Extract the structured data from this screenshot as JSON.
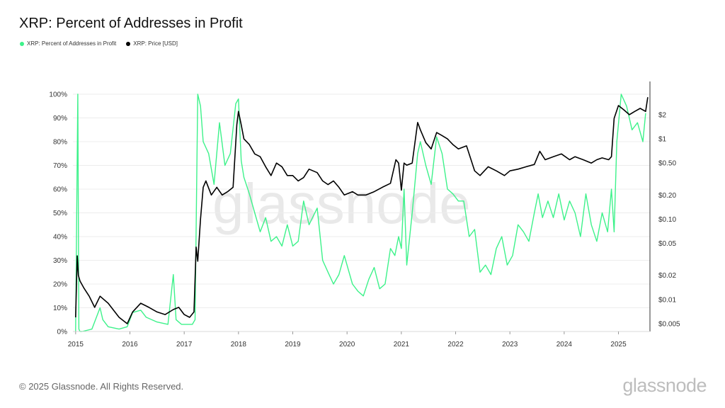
{
  "title": "XRP: Percent of Addresses in Profit",
  "legend": [
    {
      "label": "XRP: Percent of Addresses in Profit",
      "color": "#3df28a"
    },
    {
      "label": "XRP: Price [USD]",
      "color": "#000000"
    }
  ],
  "footer": "© 2025 Glassnode. All Rights Reserved.",
  "brand": "glassnode",
  "watermark": "glassnode",
  "chart_data": {
    "type": "line",
    "title": "XRP: Percent of Addresses in Profit",
    "xlabel": "",
    "ylabel": "",
    "x_ticks": [
      "2015",
      "2016",
      "2017",
      "2018",
      "2019",
      "2020",
      "2021",
      "2022",
      "2023",
      "2024",
      "2025"
    ],
    "y_left_ticks": [
      "0%",
      "10%",
      "20%",
      "30%",
      "40%",
      "50%",
      "60%",
      "70%",
      "80%",
      "90%",
      "100%"
    ],
    "y_right_ticks": [
      "$0.005",
      "$0.01",
      "$0.02",
      "$0.05",
      "$0.10",
      "$0.20",
      "$0.50",
      "$1",
      "$2"
    ],
    "y_left_range": [
      0,
      100
    ],
    "y_right_range": [
      0.004,
      3.6
    ],
    "y_right_scale": "log",
    "x_range": [
      2014.95,
      2025.58
    ],
    "grid": "horizontal",
    "legend_position": "top-left",
    "series": [
      {
        "name": "XRP: Percent of Addresses in Profit",
        "axis": "left",
        "color": "#3df28a",
        "x": [
          2015.0,
          2015.04,
          2015.06,
          2015.08,
          2015.12,
          2015.3,
          2015.45,
          2015.5,
          2015.6,
          2015.8,
          2015.95,
          2016.05,
          2016.2,
          2016.3,
          2016.5,
          2016.7,
          2016.8,
          2016.85,
          2016.95,
          2017.05,
          2017.15,
          2017.2,
          2017.25,
          2017.3,
          2017.35,
          2017.45,
          2017.55,
          2017.65,
          2017.75,
          2017.85,
          2017.95,
          2018.0,
          2018.05,
          2018.1,
          2018.2,
          2018.3,
          2018.4,
          2018.5,
          2018.6,
          2018.7,
          2018.8,
          2018.9,
          2019.0,
          2019.1,
          2019.2,
          2019.3,
          2019.45,
          2019.55,
          2019.65,
          2019.75,
          2019.85,
          2019.95,
          2020.1,
          2020.2,
          2020.3,
          2020.4,
          2020.5,
          2020.6,
          2020.7,
          2020.8,
          2020.88,
          2020.95,
          2021.0,
          2021.05,
          2021.1,
          2021.2,
          2021.3,
          2021.35,
          2021.45,
          2021.55,
          2021.65,
          2021.75,
          2021.85,
          2021.95,
          2022.05,
          2022.15,
          2022.25,
          2022.35,
          2022.45,
          2022.55,
          2022.65,
          2022.75,
          2022.85,
          2022.95,
          2023.05,
          2023.15,
          2023.25,
          2023.35,
          2023.45,
          2023.52,
          2023.6,
          2023.7,
          2023.8,
          2023.9,
          2024.0,
          2024.1,
          2024.2,
          2024.3,
          2024.4,
          2024.5,
          2024.6,
          2024.7,
          2024.8,
          2024.87,
          2024.92,
          2024.97,
          2025.05,
          2025.15,
          2025.25,
          2025.35,
          2025.45,
          2025.5
        ],
        "values": [
          0,
          100,
          1,
          0,
          0,
          1,
          10,
          5,
          2,
          1,
          2,
          8,
          9,
          6,
          4,
          3,
          24,
          5,
          3,
          3,
          3,
          5,
          100,
          95,
          80,
          75,
          62,
          88,
          70,
          75,
          96,
          98,
          72,
          65,
          58,
          50,
          42,
          48,
          38,
          40,
          36,
          45,
          36,
          38,
          55,
          45,
          52,
          30,
          25,
          20,
          24,
          32,
          20,
          17,
          15,
          22,
          27,
          18,
          20,
          35,
          32,
          40,
          35,
          60,
          28,
          50,
          75,
          80,
          70,
          62,
          82,
          75,
          60,
          58,
          55,
          55,
          40,
          43,
          25,
          28,
          24,
          35,
          40,
          28,
          32,
          45,
          42,
          38,
          50,
          58,
          48,
          55,
          48,
          58,
          47,
          55,
          50,
          40,
          58,
          45,
          38,
          50,
          42,
          60,
          42,
          80,
          100,
          95,
          85,
          88,
          80,
          92
        ]
      },
      {
        "name": "XRP: Price [USD]",
        "axis": "right",
        "color": "#000000",
        "x": [
          2015.0,
          2015.03,
          2015.05,
          2015.08,
          2015.15,
          2015.25,
          2015.35,
          2015.45,
          2015.6,
          2015.8,
          2015.95,
          2016.05,
          2016.2,
          2016.35,
          2016.5,
          2016.65,
          2016.8,
          2016.9,
          2017.0,
          2017.1,
          2017.18,
          2017.22,
          2017.25,
          2017.3,
          2017.35,
          2017.4,
          2017.5,
          2017.6,
          2017.7,
          2017.8,
          2017.9,
          2017.97,
          2018.0,
          2018.05,
          2018.1,
          2018.2,
          2018.3,
          2018.4,
          2018.5,
          2018.6,
          2018.7,
          2018.8,
          2018.9,
          2019.0,
          2019.1,
          2019.2,
          2019.3,
          2019.45,
          2019.55,
          2019.65,
          2019.75,
          2019.85,
          2019.95,
          2020.1,
          2020.2,
          2020.35,
          2020.5,
          2020.65,
          2020.8,
          2020.9,
          2020.95,
          2021.0,
          2021.05,
          2021.1,
          2021.2,
          2021.3,
          2021.35,
          2021.45,
          2021.55,
          2021.65,
          2021.75,
          2021.85,
          2021.95,
          2022.05,
          2022.2,
          2022.35,
          2022.45,
          2022.6,
          2022.75,
          2022.9,
          2023.0,
          2023.15,
          2023.3,
          2023.45,
          2023.55,
          2023.65,
          2023.8,
          2023.95,
          2024.1,
          2024.2,
          2024.35,
          2024.5,
          2024.6,
          2024.7,
          2024.82,
          2024.87,
          2024.92,
          2025.0,
          2025.1,
          2025.2,
          2025.3,
          2025.4,
          2025.5,
          2025.54
        ],
        "values": [
          0.006,
          0.035,
          0.02,
          0.017,
          0.014,
          0.011,
          0.008,
          0.011,
          0.009,
          0.006,
          0.005,
          0.007,
          0.009,
          0.008,
          0.007,
          0.0065,
          0.0075,
          0.008,
          0.0065,
          0.006,
          0.007,
          0.045,
          0.03,
          0.1,
          0.25,
          0.3,
          0.2,
          0.25,
          0.2,
          0.22,
          0.25,
          1.5,
          2.2,
          1.5,
          1.0,
          0.85,
          0.65,
          0.6,
          0.45,
          0.35,
          0.5,
          0.45,
          0.35,
          0.35,
          0.3,
          0.33,
          0.42,
          0.38,
          0.3,
          0.27,
          0.3,
          0.25,
          0.2,
          0.22,
          0.2,
          0.2,
          0.22,
          0.25,
          0.28,
          0.55,
          0.5,
          0.23,
          0.5,
          0.47,
          0.5,
          1.6,
          1.3,
          0.9,
          0.75,
          1.2,
          1.1,
          1.0,
          0.85,
          0.75,
          0.82,
          0.4,
          0.35,
          0.45,
          0.4,
          0.35,
          0.4,
          0.42,
          0.45,
          0.48,
          0.7,
          0.55,
          0.6,
          0.65,
          0.55,
          0.6,
          0.55,
          0.5,
          0.55,
          0.58,
          0.55,
          0.6,
          1.8,
          2.6,
          2.3,
          2.0,
          2.2,
          2.4,
          2.2,
          3.3
        ]
      }
    ]
  }
}
